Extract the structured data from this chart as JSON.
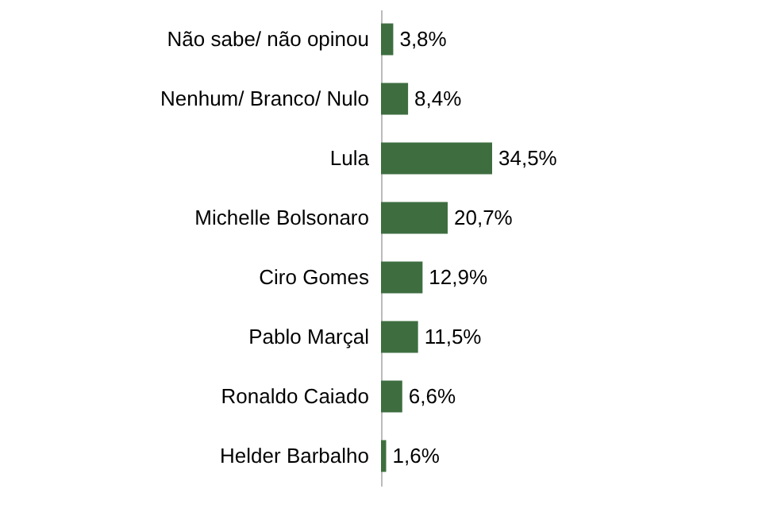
{
  "chart_data": {
    "type": "bar",
    "orientation": "horizontal",
    "categories": [
      "Não sabe/ não opinou",
      "Nenhum/ Branco/ Nulo",
      "Lula",
      "Michelle Bolsonaro",
      "Ciro Gomes",
      "Pablo Marçal",
      "Ronaldo Caiado",
      "Helder Barbalho"
    ],
    "values": [
      3.8,
      8.4,
      34.5,
      20.7,
      12.9,
      11.5,
      6.6,
      1.6
    ],
    "value_labels": [
      "3,8%",
      "8,4%",
      "34,5%",
      "20,7%",
      "12,9%",
      "11,5%",
      "6,6%",
      "1,6%"
    ],
    "color": "#3e6e40"
  }
}
